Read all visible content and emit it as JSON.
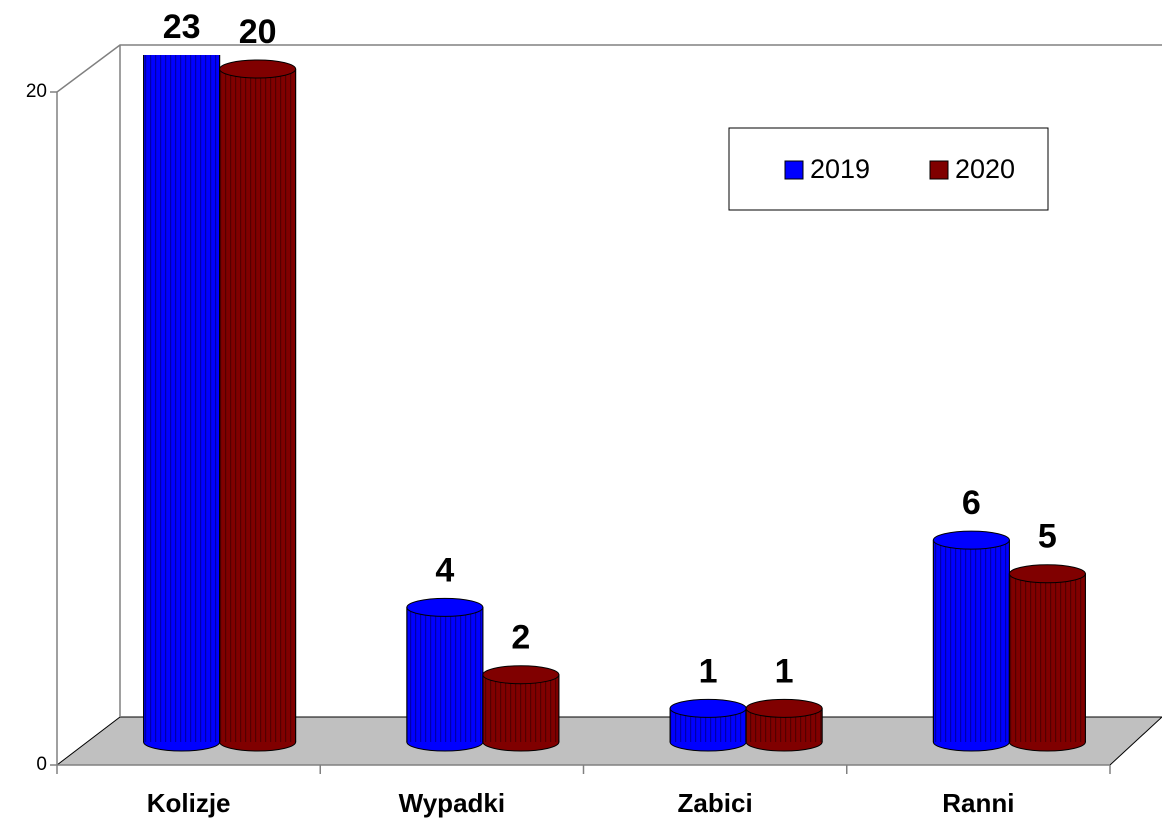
{
  "chart_data": {
    "type": "bar3d",
    "categories": [
      "Kolizje",
      "Wypadki",
      "Zabici",
      "Ranni"
    ],
    "series": [
      {
        "name": "2019",
        "color": "#0000ff",
        "values": [
          23,
          4,
          1,
          6
        ]
      },
      {
        "name": "2020",
        "color": "#800000",
        "values": [
          20,
          2,
          1,
          5
        ]
      }
    ],
    "ylim": [
      0,
      20
    ],
    "yticks": [
      0,
      20
    ],
    "legend": "upper right"
  }
}
